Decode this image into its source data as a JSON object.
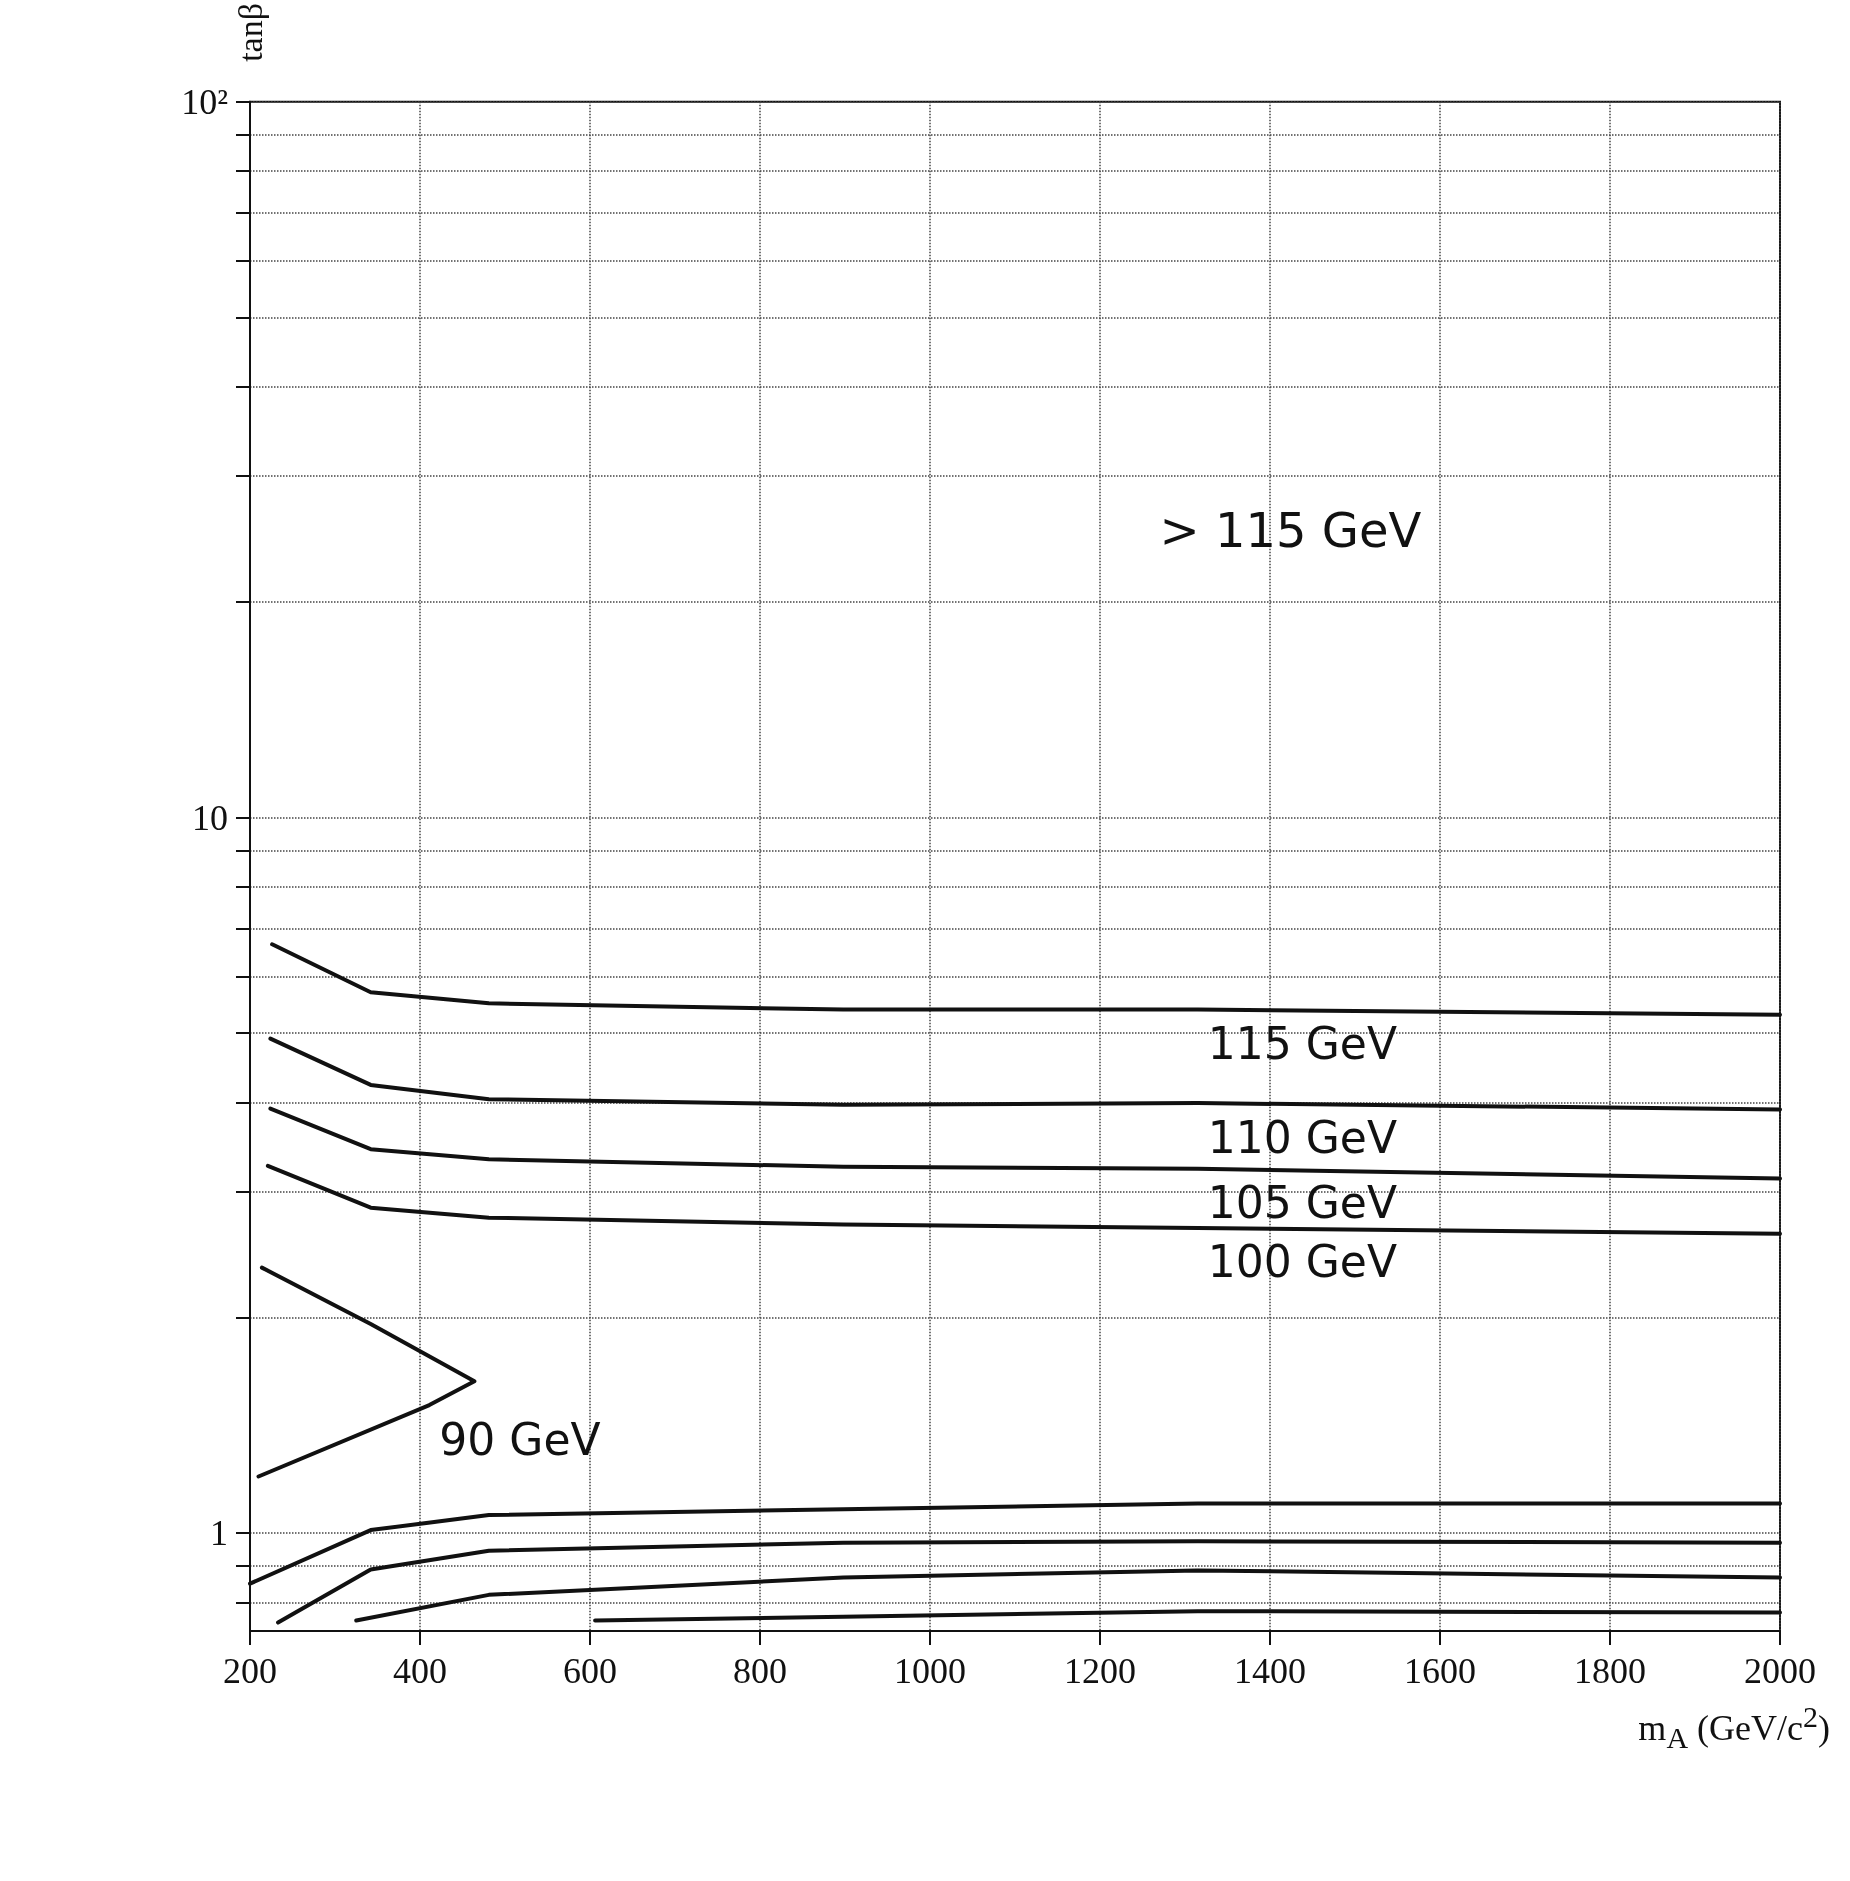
{
  "chart_data": {
    "type": "line",
    "xlabel": "m$_{A}$ (GeV/c$^{2}$)",
    "ylabel": "tanβ",
    "log": "y",
    "xlim": [
      200,
      2000
    ],
    "xticks": [
      200,
      400,
      600,
      800,
      1000,
      1200,
      1400,
      1600,
      1800,
      2000
    ],
    "ylim": [
      0.73,
      100
    ],
    "yticks": [
      {
        "value": 0.8,
        "label": null
      },
      {
        "value": 0.9,
        "label": null
      },
      1,
      {
        "value": 2,
        "label": null
      },
      {
        "value": 3,
        "label": null
      },
      {
        "value": 4,
        "label": null
      },
      {
        "value": 5,
        "label": null
      },
      {
        "value": 6,
        "label": null
      },
      {
        "value": 7,
        "label": null
      },
      {
        "value": 8,
        "label": null
      },
      {
        "value": 9,
        "label": null
      },
      10,
      {
        "value": 20,
        "label": null
      },
      {
        "value": 30,
        "label": null
      },
      {
        "value": 40,
        "label": null
      },
      {
        "value": 50,
        "label": null
      },
      {
        "value": 60,
        "label": null
      },
      {
        "value": 70,
        "label": null
      },
      {
        "value": 80,
        "label": null
      },
      {
        "value": 90,
        "label": null
      },
      {
        "value": 100,
        "label": "10²"
      }
    ],
    "grid": true,
    "marker": "none",
    "line_style": "solid",
    "legend": false,
    "series": [
      {
        "name": "115 GeV",
        "color": "#111111",
        "x": [
          226,
          342,
          481,
          898,
          1315,
          2000
        ],
        "values": [
          6.65,
          5.7,
          5.5,
          5.39,
          5.39,
          5.3
        ]
      },
      {
        "name": "110 GeV",
        "color": "#111111",
        "x": [
          224,
          342,
          481,
          898,
          1315,
          2000
        ],
        "values": [
          4.91,
          4.23,
          4.04,
          3.97,
          3.99,
          3.91
        ]
      },
      {
        "name": "105 GeV",
        "color": "#111111",
        "x": [
          224,
          342,
          481,
          898,
          1315,
          2000
        ],
        "values": [
          3.92,
          3.44,
          3.33,
          3.25,
          3.23,
          3.13
        ]
      },
      {
        "name": "100 GeV",
        "color": "#111111",
        "x": [
          221,
          342,
          481,
          898,
          1315,
          2000
        ],
        "values": [
          3.26,
          2.85,
          2.76,
          2.7,
          2.67,
          2.62
        ]
      },
      {
        "name": "90 GeV",
        "color": "#111111",
        "x": [
          214,
          342,
          464,
          411,
          210
        ],
        "values": [
          2.35,
          1.96,
          1.63,
          1.51,
          1.2
        ]
      },
      {
        "color": "#111111",
        "x": [
          200,
          342,
          481,
          898,
          1315,
          2000
        ],
        "values": [
          0.85,
          1.01,
          1.06,
          1.08,
          1.1,
          1.1
        ]
      },
      {
        "color": "#111111",
        "x": [
          233,
          342,
          481,
          898,
          1315,
          2000
        ],
        "values": [
          0.75,
          0.89,
          0.945,
          0.97,
          0.974,
          0.97
        ]
      },
      {
        "color": "#111111",
        "x": [
          325,
          481,
          898,
          1315,
          2000
        ],
        "values": [
          0.755,
          0.82,
          0.867,
          0.887,
          0.867
        ]
      },
      {
        "color": "#111111",
        "x": [
          606,
          898,
          1315,
          2000
        ],
        "values": [
          0.755,
          0.764,
          0.778,
          0.775
        ]
      }
    ],
    "annotations": [
      "> 115 GeV"
    ]
  }
}
